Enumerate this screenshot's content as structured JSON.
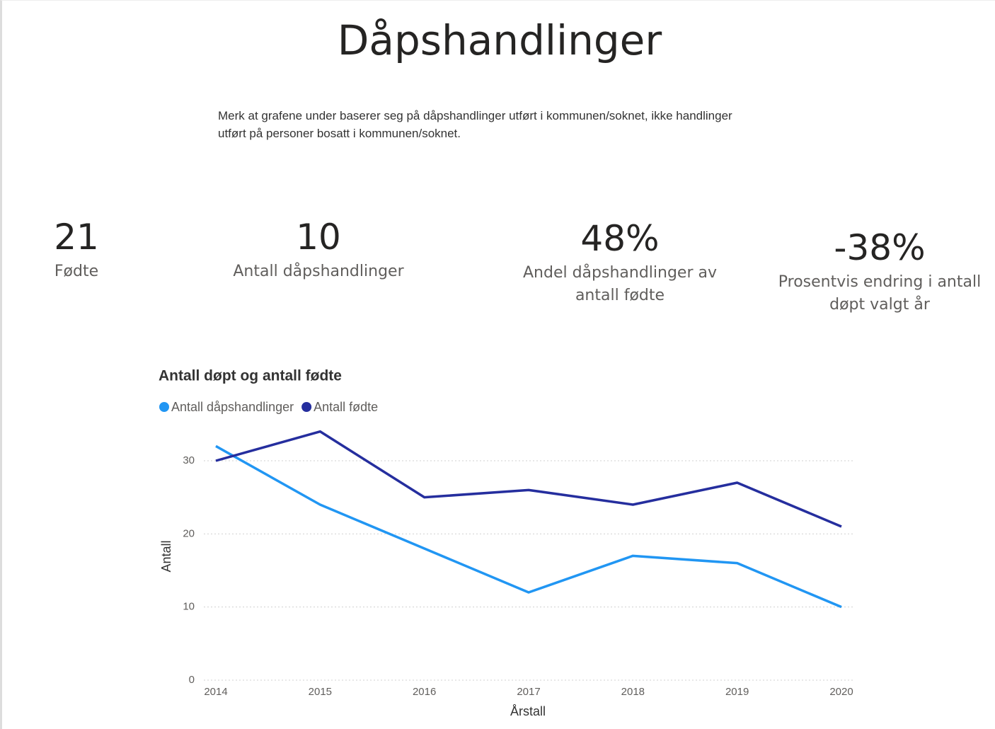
{
  "header": {
    "title": "Dåpshandlinger",
    "note": "Merk at grafene under baserer seg på dåpshandlinger utført i kommunen/soknet, ikke handlinger utført på personer bosatt i kommunen/soknet."
  },
  "kpis": [
    {
      "value": "21",
      "label": "Fødte"
    },
    {
      "value": "10",
      "label": "Antall dåpshandlinger"
    },
    {
      "value": "48%",
      "label": "Andel dåpshandlinger av antall fødte"
    },
    {
      "value": "-38%",
      "label": "Prosentvis endring i antall døpt valgt år"
    }
  ],
  "chart_data": {
    "type": "line",
    "title": "Antall døpt og antall fødte",
    "x_label": "Årstall",
    "y_label": "Antall",
    "categories": [
      "2014",
      "2015",
      "2016",
      "2017",
      "2018",
      "2019",
      "2020"
    ],
    "series": [
      {
        "name": "Antall dåpshandlinger",
        "color": "#2196f3",
        "values": [
          32,
          24,
          18,
          12,
          17,
          16,
          10
        ]
      },
      {
        "name": "Antall fødte",
        "color": "#252e9e",
        "values": [
          30,
          34,
          25,
          26,
          24,
          27,
          21
        ]
      }
    ],
    "ylim": [
      0,
      35
    ],
    "yticks": [
      0,
      10,
      20,
      30
    ],
    "grid": true
  }
}
